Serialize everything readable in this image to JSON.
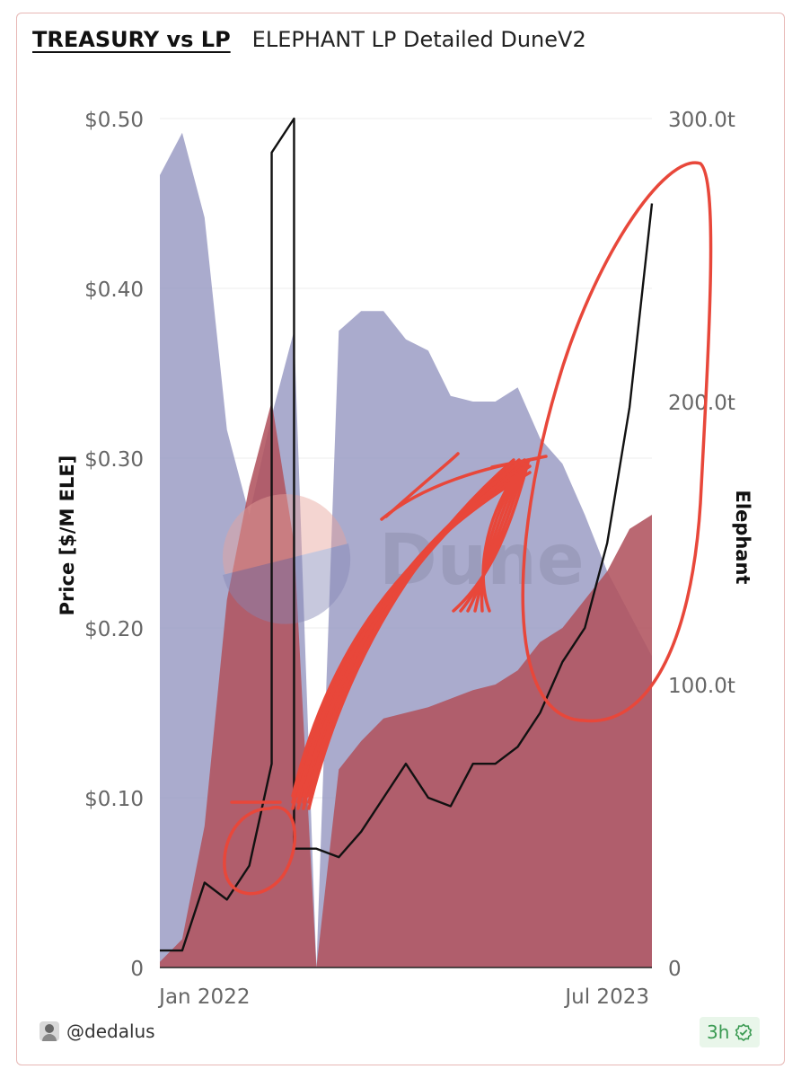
{
  "header": {
    "title": "TREASURY vs LP",
    "subtitle": "ELEPHANT LP Detailed DuneV2"
  },
  "footer": {
    "handle": "@dedalus",
    "age": "3h",
    "avatar": "author-avatar",
    "verified_icon": "check-badge-icon"
  },
  "watermark": "Dune",
  "colors": {
    "treasury_area": "#9b9cc4",
    "lp_area": "#b0535f",
    "lp_area_right": "#d26a6c",
    "price_line": "#111111",
    "annotation": "#e8473a",
    "grid": "#ececec",
    "badge_text": "#3a9a52"
  },
  "chart_data": {
    "type": "area",
    "ylabel": "Price [$/M ELE]",
    "y2label": "Elephant",
    "x_ticks": [
      "Jan 2022",
      "Jul 2023"
    ],
    "y_ticks": [
      "0",
      "$0.10",
      "$0.20",
      "$0.30",
      "$0.40",
      "$0.50"
    ],
    "y2_ticks": [
      "0",
      "100.0t",
      "200.0t",
      "300.0t"
    ],
    "ylim": [
      0,
      0.5
    ],
    "y2lim": [
      0,
      300
    ],
    "x_range": [
      "2021-11",
      "2023-09"
    ],
    "grid": true,
    "legend": "none",
    "series": [
      {
        "axis": "right",
        "style": "area",
        "x": [
          "2021-11",
          "2021-12",
          "2022-01",
          "2022-02",
          "2022-03",
          "2022-04",
          "2022-05",
          "2022-06",
          "2022-07",
          "2022-08",
          "2022-09",
          "2022-10",
          "2022-11",
          "2022-12",
          "2023-01",
          "2023-02",
          "2023-03",
          "2023-04",
          "2023-05",
          "2023-06",
          "2023-07",
          "2023-08",
          "2023-09"
        ],
        "values": [
          280,
          295,
          265,
          190,
          160,
          195,
          225,
          0,
          225,
          232,
          232,
          222,
          218,
          202,
          200,
          200,
          205,
          187,
          178,
          160,
          140,
          125,
          110
        ]
      },
      {
        "axis": "right",
        "style": "area",
        "x": [
          "2021-11",
          "2021-12",
          "2022-01",
          "2022-02",
          "2022-03",
          "2022-04",
          "2022-05",
          "2022-06",
          "2022-07",
          "2022-08",
          "2022-09",
          "2022-10",
          "2022-11",
          "2022-12",
          "2023-01",
          "2023-02",
          "2023-03",
          "2023-04",
          "2023-05",
          "2023-06",
          "2023-07",
          "2023-08",
          "2023-09"
        ],
        "values": [
          2,
          10,
          50,
          130,
          170,
          200,
          150,
          0,
          70,
          80,
          88,
          90,
          92,
          95,
          98,
          100,
          105,
          115,
          120,
          130,
          140,
          155,
          160
        ]
      },
      {
        "axis": "left",
        "style": "line",
        "x": [
          "2021-11",
          "2021-12",
          "2022-01",
          "2022-02",
          "2022-03",
          "2022-04",
          "2022-04",
          "2022-05",
          "2022-05",
          "2022-06",
          "2022-07",
          "2022-08",
          "2022-09",
          "2022-10",
          "2022-11",
          "2022-12",
          "2023-01",
          "2023-02",
          "2023-03",
          "2023-04",
          "2023-05",
          "2023-06",
          "2023-07",
          "2023-08",
          "2023-09"
        ],
        "values": [
          0.01,
          0.01,
          0.05,
          0.04,
          0.06,
          0.12,
          0.48,
          0.5,
          0.07,
          0.07,
          0.065,
          0.08,
          0.1,
          0.12,
          0.1,
          0.095,
          0.12,
          0.12,
          0.13,
          0.15,
          0.18,
          0.2,
          0.25,
          0.33,
          0.45
        ]
      }
    ]
  }
}
